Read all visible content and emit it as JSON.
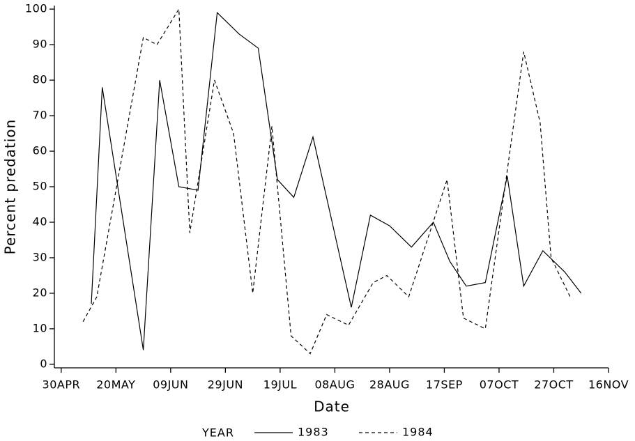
{
  "chart_data": {
    "type": "line",
    "x_label": "Date",
    "y_label": "Percent predation",
    "legend_title": "YEAR",
    "xlim": [
      -2.5,
      200
    ],
    "xticks": [
      {
        "value": 0,
        "label": "30APR"
      },
      {
        "value": 20,
        "label": "20MAY"
      },
      {
        "value": 40,
        "label": "09JUN"
      },
      {
        "value": 60,
        "label": "29JUN"
      },
      {
        "value": 80,
        "label": "19JUL"
      },
      {
        "value": 100,
        "label": "08AUG"
      },
      {
        "value": 120,
        "label": "28AUG"
      },
      {
        "value": 140,
        "label": "17SEP"
      },
      {
        "value": 160,
        "label": "07OCT"
      },
      {
        "value": 180,
        "label": "27OCT"
      },
      {
        "value": 200,
        "label": "16NOV"
      }
    ],
    "ylim": [
      -1,
      101
    ],
    "yticks": [
      0,
      10,
      20,
      30,
      40,
      50,
      60,
      70,
      80,
      90,
      100
    ],
    "grid": false,
    "series": [
      {
        "name": "1983",
        "color": "#000000",
        "linestyle": "solid",
        "x": [
          11,
          15,
          30,
          36,
          43,
          50,
          57,
          65,
          72,
          79,
          85,
          92,
          106,
          113,
          120,
          128,
          136,
          142,
          148,
          155,
          163,
          169,
          176,
          184,
          190
        ],
        "values": [
          17,
          78,
          4,
          80,
          50,
          49,
          99,
          93,
          89,
          52,
          47,
          64,
          16,
          42,
          39,
          33,
          40,
          29,
          22,
          23,
          53,
          22,
          32,
          26,
          20
        ]
      },
      {
        "name": "1984",
        "color": "#000000",
        "linestyle": "dashed",
        "x": [
          8,
          13,
          30,
          35,
          43,
          47,
          56,
          63,
          70,
          77,
          84,
          91,
          97,
          105,
          114,
          119,
          127,
          141,
          147,
          155,
          169,
          175,
          179,
          186
        ],
        "values": [
          12,
          19,
          92,
          90,
          100,
          37,
          80,
          65,
          20,
          67,
          8,
          3,
          14,
          11,
          23,
          25,
          19,
          52,
          13,
          10,
          88,
          68,
          30,
          19
        ]
      }
    ]
  }
}
